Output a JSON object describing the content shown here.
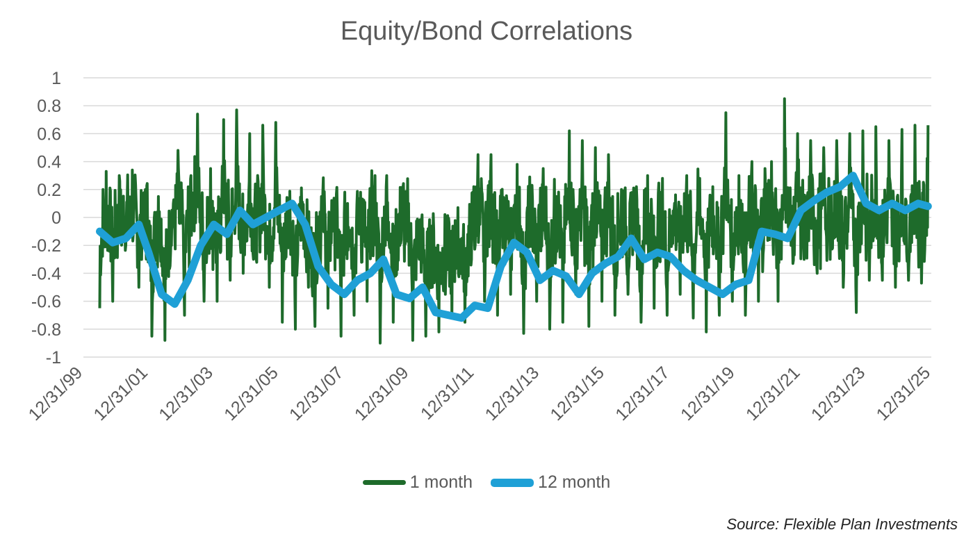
{
  "chart_data": {
    "type": "line",
    "title": "Equity/Bond Correlations",
    "xlabel": "",
    "ylabel": "",
    "ylim": [
      -1,
      1
    ],
    "y_ticks": [
      "1",
      "0.8",
      "0.6",
      "0.4",
      "0.2",
      "0",
      "-0.2",
      "-0.4",
      "-0.6",
      "-0.8",
      "-1"
    ],
    "x_ticks": [
      "12/31/99",
      "12/31/01",
      "12/31/03",
      "12/31/05",
      "12/31/07",
      "12/31/09",
      "12/31/11",
      "12/31/13",
      "12/31/15",
      "12/31/17",
      "12/31/19",
      "12/31/21",
      "12/31/23",
      "12/31/25"
    ],
    "xlim": [
      2000.0,
      2026.0
    ],
    "grid": true,
    "legend_position": "bottom",
    "series": [
      {
        "name": "1 month",
        "color": "#1e6b2b",
        "x": [
          2000.5,
          2000.7,
          2000.9,
          2001.1,
          2001.3,
          2001.5,
          2001.7,
          2001.9,
          2002.1,
          2002.3,
          2002.5,
          2002.7,
          2002.9,
          2003.1,
          2003.3,
          2003.5,
          2003.7,
          2003.9,
          2004.1,
          2004.3,
          2004.5,
          2004.7,
          2004.9,
          2005.1,
          2005.3,
          2005.5,
          2005.7,
          2005.9,
          2006.1,
          2006.3,
          2006.5,
          2006.7,
          2006.9,
          2007.1,
          2007.3,
          2007.5,
          2007.7,
          2007.9,
          2008.1,
          2008.3,
          2008.5,
          2008.7,
          2008.9,
          2009.1,
          2009.3,
          2009.5,
          2009.7,
          2009.9,
          2010.1,
          2010.3,
          2010.5,
          2010.7,
          2010.9,
          2011.1,
          2011.3,
          2011.5,
          2011.7,
          2011.9,
          2012.1,
          2012.3,
          2012.5,
          2012.7,
          2012.9,
          2013.1,
          2013.3,
          2013.5,
          2013.7,
          2013.9,
          2014.1,
          2014.3,
          2014.5,
          2014.7,
          2014.9,
          2015.1,
          2015.3,
          2015.5,
          2015.7,
          2015.9,
          2016.1,
          2016.3,
          2016.5,
          2016.7,
          2016.9,
          2017.1,
          2017.3,
          2017.5,
          2017.7,
          2017.9,
          2018.1,
          2018.3,
          2018.5,
          2018.7,
          2018.9,
          2019.1,
          2019.3,
          2019.5,
          2019.7,
          2019.9,
          2020.1,
          2020.3,
          2020.5,
          2020.7,
          2020.9,
          2021.1,
          2021.3,
          2021.5,
          2021.7,
          2021.9,
          2022.1,
          2022.3,
          2022.5,
          2022.7,
          2022.9,
          2023.1,
          2023.3,
          2023.5,
          2023.7,
          2023.9,
          2024.1,
          2024.3,
          2024.5,
          2024.7,
          2024.9,
          2025.1,
          2025.3,
          2025.5,
          2025.7,
          2025.9
        ],
        "values": [
          -0.65,
          0.33,
          -0.6,
          0.3,
          -0.2,
          0.34,
          -0.5,
          0.2,
          -0.85,
          0.15,
          -0.88,
          -0.2,
          0.48,
          -0.7,
          0.3,
          0.74,
          -0.6,
          0.35,
          -0.6,
          0.7,
          -0.45,
          0.77,
          -0.4,
          0.6,
          -0.3,
          0.66,
          -0.5,
          0.68,
          -0.75,
          0.1,
          -0.8,
          0.0,
          -0.5,
          -0.78,
          0.15,
          -0.65,
          0.1,
          -0.85,
          0.1,
          -0.7,
          0.18,
          -0.6,
          0.22,
          -0.9,
          0.3,
          -0.75,
          -0.2,
          0.15,
          -0.88,
          -0.3,
          -0.85,
          -0.5,
          -0.82,
          -0.55,
          -0.72,
          -0.4,
          -0.75,
          -0.3,
          0.45,
          -0.6,
          0.45,
          -0.7,
          0.1,
          -0.55,
          0.38,
          -0.83,
          0.05,
          -0.6,
          0.35,
          -0.8,
          0.15,
          -0.75,
          0.62,
          -0.55,
          0.55,
          -0.78,
          0.5,
          -0.6,
          0.45,
          -0.7,
          0.2,
          -0.55,
          0.0,
          -0.75,
          0.3,
          -0.65,
          0.18,
          -0.7,
          0.0,
          -0.55,
          0.3,
          -0.72,
          0.28,
          -0.82,
          0.22,
          -0.7,
          0.75,
          -0.6,
          0.3,
          -0.7,
          0.4,
          -0.6,
          0.35,
          0.4,
          -0.6,
          0.85,
          -0.2,
          0.6,
          -0.3,
          0.55,
          -0.4,
          0.5,
          -0.3,
          0.55,
          -0.5,
          0.6,
          -0.68,
          0.62,
          -0.45,
          0.65,
          -0.45,
          0.55,
          -0.5,
          0.63,
          -0.45,
          0.66,
          -0.47,
          0.66
        ],
        "note": "dense daily-ish series approximated by oscillation envelope"
      },
      {
        "name": "12 month",
        "color": "#1fa0d6",
        "x": [
          2000.5,
          2000.9,
          2001.3,
          2001.7,
          2002.0,
          2002.4,
          2002.8,
          2003.2,
          2003.6,
          2004.0,
          2004.4,
          2004.8,
          2005.2,
          2005.6,
          2006.0,
          2006.4,
          2006.8,
          2007.2,
          2007.6,
          2008.0,
          2008.4,
          2008.8,
          2009.2,
          2009.6,
          2010.0,
          2010.4,
          2010.8,
          2011.2,
          2011.6,
          2012.0,
          2012.4,
          2012.8,
          2013.2,
          2013.6,
          2014.0,
          2014.4,
          2014.8,
          2015.2,
          2015.6,
          2016.0,
          2016.4,
          2016.8,
          2017.2,
          2017.6,
          2018.0,
          2018.4,
          2018.8,
          2019.2,
          2019.6,
          2020.0,
          2020.4,
          2020.8,
          2021.2,
          2021.6,
          2022.0,
          2022.4,
          2022.8,
          2023.2,
          2023.6,
          2024.0,
          2024.4,
          2024.8,
          2025.2,
          2025.6,
          2025.9
        ],
        "values": [
          -0.1,
          -0.18,
          -0.15,
          -0.05,
          -0.25,
          -0.55,
          -0.62,
          -0.45,
          -0.2,
          -0.05,
          -0.12,
          0.05,
          -0.05,
          0.0,
          0.05,
          0.1,
          -0.05,
          -0.35,
          -0.48,
          -0.55,
          -0.45,
          -0.4,
          -0.3,
          -0.55,
          -0.58,
          -0.5,
          -0.68,
          -0.7,
          -0.72,
          -0.63,
          -0.65,
          -0.35,
          -0.18,
          -0.25,
          -0.45,
          -0.38,
          -0.42,
          -0.55,
          -0.4,
          -0.33,
          -0.28,
          -0.15,
          -0.3,
          -0.25,
          -0.28,
          -0.38,
          -0.45,
          -0.5,
          -0.55,
          -0.48,
          -0.45,
          -0.1,
          -0.12,
          -0.15,
          0.05,
          0.12,
          0.18,
          0.22,
          0.3,
          0.1,
          0.05,
          0.1,
          0.05,
          0.1,
          0.08
        ]
      }
    ]
  },
  "legend": {
    "items": [
      {
        "label": "1 month",
        "color": "#1e6b2b"
      },
      {
        "label": "12 month",
        "color": "#1fa0d6"
      }
    ]
  },
  "source_text": "Source: Flexible Plan Investments"
}
